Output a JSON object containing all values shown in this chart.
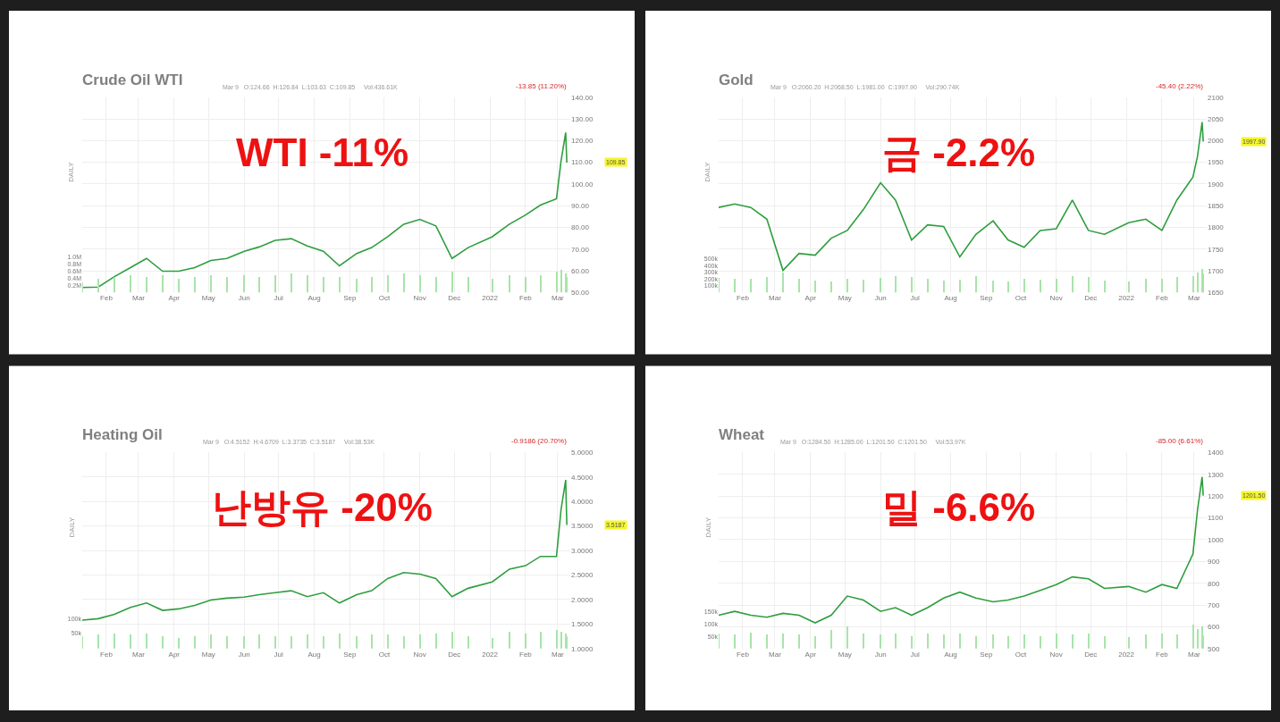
{
  "chart_data": [
    {
      "type": "line",
      "title": "Crude Oil WTI",
      "subtitle": "Mar 9   O:124.66  H:126.84  L:103.63  C:109.85     Vol:436.61K",
      "annotations": [
        "-13.85 (11.20%)",
        "WTI -11%",
        "DAILY",
        "109.85"
      ],
      "x": [
        "2021-01-11",
        "2021-01-25",
        "2021-02-08",
        "2021-02-22",
        "2021-03-08",
        "2021-03-22",
        "2021-04-05",
        "2021-04-19",
        "2021-05-03",
        "2021-05-17",
        "2021-06-01",
        "2021-06-14",
        "2021-06-28",
        "2021-07-12",
        "2021-07-26",
        "2021-08-09",
        "2021-08-23",
        "2021-09-07",
        "2021-09-20",
        "2021-10-04",
        "2021-10-18",
        "2021-11-01",
        "2021-11-15",
        "2021-11-29",
        "2021-12-13",
        "2022-01-03",
        "2022-01-18",
        "2022-02-01",
        "2022-02-14",
        "2022-02-28",
        "2022-03-04",
        "2022-03-08",
        "2022-03-09"
      ],
      "series": [
        {
          "color": "#2e9e3e",
          "values": [
            52.3,
            52.5,
            57.3,
            61.5,
            65.7,
            59.8,
            59.8,
            61.5,
            64.8,
            65.7,
            69,
            71,
            74,
            74.8,
            71.5,
            69,
            62.3,
            68,
            70.7,
            75.7,
            81.5,
            83.7,
            80.7,
            65.7,
            70.7,
            75.7,
            81.5,
            85.7,
            90.3,
            93.2,
            110.7,
            123.7,
            109.9
          ]
        },
        {
          "type": "bar",
          "axis": "y2",
          "color": "#a8e4a8",
          "values": [
            0.3,
            0.4,
            0.45,
            0.5,
            0.45,
            0.5,
            0.4,
            0.45,
            0.5,
            0.45,
            0.5,
            0.45,
            0.5,
            0.55,
            0.5,
            0.45,
            0.45,
            0.4,
            0.45,
            0.5,
            0.55,
            0.5,
            0.45,
            0.6,
            0.45,
            0.4,
            0.5,
            0.45,
            0.5,
            0.6,
            0.65,
            0.55,
            0.45
          ]
        }
      ],
      "xlim": [
        "2021-01-11",
        "2022-03-12"
      ],
      "xticks": [
        {
          "value": "2021-02-01",
          "label": "Feb"
        },
        {
          "value": "2021-03-01",
          "label": "Mar"
        },
        {
          "value": "2021-04-01",
          "label": "Apr"
        },
        {
          "value": "2021-05-01",
          "label": "May"
        },
        {
          "value": "2021-06-01",
          "label": "Jun"
        },
        {
          "value": "2021-07-01",
          "label": "Jul"
        },
        {
          "value": "2021-08-01",
          "label": "Aug"
        },
        {
          "value": "2021-09-01",
          "label": "Sep"
        },
        {
          "value": "2021-10-01",
          "label": "Oct"
        },
        {
          "value": "2021-11-01",
          "label": "Nov"
        },
        {
          "value": "2021-12-01",
          "label": "Dec"
        },
        {
          "value": "2022-01-01",
          "label": "2022"
        },
        {
          "value": "2022-02-01",
          "label": "Feb"
        },
        {
          "value": "2022-03-01",
          "label": "Mar"
        }
      ],
      "ylim": [
        50,
        140
      ],
      "yticks": [
        {
          "value": 50,
          "label": "50.00"
        },
        {
          "value": 60,
          "label": "60.00"
        },
        {
          "value": 70,
          "label": "70.00"
        },
        {
          "value": 80,
          "label": "80.00"
        },
        {
          "value": 90,
          "label": "90.00"
        },
        {
          "value": 100,
          "label": "100.00"
        },
        {
          "value": 110,
          "label": "110.00"
        },
        {
          "value": 120,
          "label": "120.00"
        },
        {
          "value": 130,
          "label": "130.00"
        },
        {
          "value": 140,
          "label": "140.00"
        }
      ],
      "y2lim": [
        0,
        5.5
      ],
      "y2ticks": [
        {
          "value": 0.2,
          "label": "0.2M"
        },
        {
          "value": 0.4,
          "label": "0.4M"
        },
        {
          "value": 0.6,
          "label": "0.6M"
        },
        {
          "value": 0.8,
          "label": "0.8M"
        },
        {
          "value": 1.0,
          "label": "1.0M"
        }
      ],
      "grid": true
    },
    {
      "type": "line",
      "title": "Gold",
      "subtitle": "Mar 9   O:2060.20  H:2068.50  L:1981.00  C:1997.90     Vol:290.74K",
      "annotations": [
        "-45.40 (2.22%)",
        "금 -2.2%",
        "DAILY",
        "1997.90"
      ],
      "x": [
        "2021-01-11",
        "2021-01-25",
        "2021-02-08",
        "2021-02-22",
        "2021-03-08",
        "2021-03-22",
        "2021-04-05",
        "2021-04-19",
        "2021-05-03",
        "2021-05-17",
        "2021-06-01",
        "2021-06-14",
        "2021-06-28",
        "2021-07-12",
        "2021-07-26",
        "2021-08-09",
        "2021-08-23",
        "2021-09-07",
        "2021-09-20",
        "2021-10-04",
        "2021-10-18",
        "2021-11-01",
        "2021-11-15",
        "2021-11-29",
        "2021-12-13",
        "2022-01-03",
        "2022-01-18",
        "2022-02-01",
        "2022-02-14",
        "2022-02-28",
        "2022-03-04",
        "2022-03-08",
        "2022-03-09"
      ],
      "series": [
        {
          "color": "#2e9e3e",
          "values": [
            1846,
            1854,
            1846,
            1819,
            1701,
            1740,
            1736,
            1775,
            1793,
            1841,
            1903,
            1863,
            1771,
            1806,
            1802,
            1732,
            1784,
            1815,
            1771,
            1754,
            1793,
            1797,
            1863,
            1793,
            1784,
            1811,
            1819,
            1793,
            1863,
            1916,
            1964,
            2043,
            1998
          ]
        },
        {
          "type": "bar",
          "axis": "y2",
          "color": "#a8e4a8",
          "values": [
            220,
            200,
            210,
            230,
            300,
            200,
            180,
            170,
            200,
            190,
            220,
            250,
            230,
            200,
            180,
            190,
            250,
            180,
            170,
            200,
            190,
            210,
            250,
            230,
            180,
            170,
            200,
            210,
            230,
            250,
            300,
            350,
            290
          ]
        }
      ],
      "xlim": [
        "2021-01-11",
        "2022-03-12"
      ],
      "xticks": [
        {
          "value": "2021-02-01",
          "label": "Feb"
        },
        {
          "value": "2021-03-01",
          "label": "Mar"
        },
        {
          "value": "2021-04-01",
          "label": "Apr"
        },
        {
          "value": "2021-05-01",
          "label": "May"
        },
        {
          "value": "2021-06-01",
          "label": "Jun"
        },
        {
          "value": "2021-07-01",
          "label": "Jul"
        },
        {
          "value": "2021-08-01",
          "label": "Aug"
        },
        {
          "value": "2021-09-01",
          "label": "Sep"
        },
        {
          "value": "2021-10-01",
          "label": "Oct"
        },
        {
          "value": "2021-11-01",
          "label": "Nov"
        },
        {
          "value": "2021-12-01",
          "label": "Dec"
        },
        {
          "value": "2022-01-01",
          "label": "2022"
        },
        {
          "value": "2022-02-01",
          "label": "Feb"
        },
        {
          "value": "2022-03-01",
          "label": "Mar"
        }
      ],
      "ylim": [
        1650,
        2100
      ],
      "yticks": [
        1650,
        1700,
        1750,
        1800,
        1850,
        1900,
        1950,
        2000,
        2050,
        2100
      ],
      "y2lim": [
        0,
        2900
      ],
      "y2ticks": [
        {
          "value": 100,
          "label": "100k"
        },
        {
          "value": 200,
          "label": "200k"
        },
        {
          "value": 300,
          "label": "300k"
        },
        {
          "value": 400,
          "label": "400k"
        },
        {
          "value": 500,
          "label": "500k"
        }
      ],
      "grid": true
    },
    {
      "type": "line",
      "title": "Heating Oil",
      "subtitle": "Mar 9   O:4.5152  H:4.6709  L:3.3735  C:3.5187     Vol:38.53K",
      "annotations": [
        "-0.9186 (20.70%)",
        "난방유 -20%",
        "DAILY",
        "3.5187"
      ],
      "x": [
        "2021-01-11",
        "2021-01-25",
        "2021-02-08",
        "2021-02-22",
        "2021-03-08",
        "2021-03-22",
        "2021-04-05",
        "2021-04-19",
        "2021-05-03",
        "2021-05-17",
        "2021-06-01",
        "2021-06-14",
        "2021-06-28",
        "2021-07-12",
        "2021-07-26",
        "2021-08-09",
        "2021-08-23",
        "2021-09-07",
        "2021-09-20",
        "2021-10-04",
        "2021-10-18",
        "2021-11-01",
        "2021-11-15",
        "2021-11-29",
        "2021-12-13",
        "2022-01-03",
        "2022-01-18",
        "2022-02-01",
        "2022-02-14",
        "2022-02-28",
        "2022-03-04",
        "2022-03-08",
        "2022-03-09"
      ],
      "series": [
        {
          "color": "#2e9e3e",
          "values": [
            1.58,
            1.61,
            1.7,
            1.84,
            1.93,
            1.78,
            1.81,
            1.88,
            1.99,
            2.03,
            2.05,
            2.1,
            2.14,
            2.18,
            2.06,
            2.14,
            1.93,
            2.1,
            2.18,
            2.43,
            2.55,
            2.52,
            2.43,
            2.06,
            2.23,
            2.36,
            2.62,
            2.69,
            2.88,
            2.88,
            3.84,
            4.44,
            3.52
          ]
        },
        {
          "type": "bar",
          "axis": "y2",
          "color": "#a8e4a8",
          "values": [
            40,
            45,
            50,
            45,
            50,
            40,
            35,
            40,
            45,
            40,
            40,
            45,
            40,
            40,
            45,
            40,
            50,
            40,
            45,
            45,
            40,
            45,
            50,
            55,
            40,
            35,
            55,
            50,
            55,
            60,
            55,
            50,
            39
          ]
        }
      ],
      "xlim": [
        "2021-01-11",
        "2022-03-12"
      ],
      "xticks": [
        {
          "value": "2021-02-01",
          "label": "Feb"
        },
        {
          "value": "2021-03-01",
          "label": "Mar"
        },
        {
          "value": "2021-04-01",
          "label": "Apr"
        },
        {
          "value": "2021-05-01",
          "label": "May"
        },
        {
          "value": "2021-06-01",
          "label": "Jun"
        },
        {
          "value": "2021-07-01",
          "label": "Jul"
        },
        {
          "value": "2021-08-01",
          "label": "Aug"
        },
        {
          "value": "2021-09-01",
          "label": "Sep"
        },
        {
          "value": "2021-10-01",
          "label": "Oct"
        },
        {
          "value": "2021-11-01",
          "label": "Nov"
        },
        {
          "value": "2021-12-01",
          "label": "Dec"
        },
        {
          "value": "2022-01-01",
          "label": "2022"
        },
        {
          "value": "2022-02-01",
          "label": "Feb"
        },
        {
          "value": "2022-03-01",
          "label": "Mar"
        }
      ],
      "ylim": [
        1.0,
        5.0
      ],
      "yticks": [
        {
          "value": 1.0,
          "label": "1.0000"
        },
        {
          "value": 1.5,
          "label": "1.5000"
        },
        {
          "value": 2.0,
          "label": "2.0000"
        },
        {
          "value": 2.5,
          "label": "2.5000"
        },
        {
          "value": 3.0,
          "label": "3.0000"
        },
        {
          "value": 3.5,
          "label": "3.5000"
        },
        {
          "value": 4.0,
          "label": "4.0000"
        },
        {
          "value": 4.5,
          "label": "4.5000"
        },
        {
          "value": 5.0,
          "label": "5.0000"
        }
      ],
      "y2lim": [
        0,
        650
      ],
      "y2ticks": [
        {
          "value": 50,
          "label": "50k"
        },
        {
          "value": 100,
          "label": "100k"
        }
      ],
      "grid": true
    },
    {
      "type": "line",
      "title": "Wheat",
      "subtitle": "Mar 9   O:1284.50  H:1285.00  L:1201.50  C:1201.50     Vol:53.97K",
      "annotations": [
        "-85.00 (6.61%)",
        "밀 -6.6%",
        "DAILY",
        "1201.50"
      ],
      "x": [
        "2021-01-11",
        "2021-01-25",
        "2021-02-08",
        "2021-02-22",
        "2021-03-08",
        "2021-03-22",
        "2021-04-05",
        "2021-04-19",
        "2021-05-03",
        "2021-05-17",
        "2021-06-01",
        "2021-06-14",
        "2021-06-28",
        "2021-07-12",
        "2021-07-26",
        "2021-08-09",
        "2021-08-23",
        "2021-09-07",
        "2021-09-20",
        "2021-10-04",
        "2021-10-18",
        "2021-11-01",
        "2021-11-15",
        "2021-11-29",
        "2021-12-13",
        "2022-01-03",
        "2022-01-18",
        "2022-02-01",
        "2022-02-14",
        "2022-02-28",
        "2022-03-04",
        "2022-03-08",
        "2022-03-09"
      ],
      "series": [
        {
          "color": "#2e9e3e",
          "values": [
            653,
            671,
            653,
            644,
            662,
            653,
            618,
            653,
            741,
            723,
            671,
            688,
            653,
            688,
            732,
            759,
            732,
            715,
            723,
            741,
            767,
            794,
            829,
            820,
            776,
            785,
            759,
            794,
            776,
            934,
            1136,
            1287,
            1202
          ]
        },
        {
          "type": "bar",
          "axis": "y2",
          "color": "#a8e4a8",
          "values": [
            60,
            55,
            65,
            55,
            60,
            55,
            50,
            75,
            90,
            60,
            55,
            60,
            50,
            60,
            55,
            60,
            50,
            55,
            50,
            55,
            50,
            60,
            55,
            60,
            50,
            45,
            55,
            60,
            55,
            95,
            80,
            90,
            54
          ]
        }
      ],
      "xlim": [
        "2021-01-11",
        "2022-03-12"
      ],
      "xticks": [
        {
          "value": "2021-02-01",
          "label": "Feb"
        },
        {
          "value": "2021-03-01",
          "label": "Mar"
        },
        {
          "value": "2021-04-01",
          "label": "Apr"
        },
        {
          "value": "2021-05-01",
          "label": "May"
        },
        {
          "value": "2021-06-01",
          "label": "Jun"
        },
        {
          "value": "2021-07-01",
          "label": "Jul"
        },
        {
          "value": "2021-08-01",
          "label": "Aug"
        },
        {
          "value": "2021-09-01",
          "label": "Sep"
        },
        {
          "value": "2021-10-01",
          "label": "Oct"
        },
        {
          "value": "2021-11-01",
          "label": "Nov"
        },
        {
          "value": "2021-12-01",
          "label": "Dec"
        },
        {
          "value": "2022-01-01",
          "label": "2022"
        },
        {
          "value": "2022-02-01",
          "label": "Feb"
        },
        {
          "value": "2022-03-01",
          "label": "Mar"
        }
      ],
      "ylim": [
        500,
        1400
      ],
      "yticks": [
        500,
        600,
        700,
        800,
        900,
        1000,
        1100,
        1200,
        1300,
        1400
      ],
      "y2lim": [
        0,
        800
      ],
      "y2ticks": [
        {
          "value": 50,
          "label": "50k"
        },
        {
          "value": 100,
          "label": "100k"
        },
        {
          "value": 150,
          "label": "150k"
        }
      ],
      "grid": true
    }
  ]
}
